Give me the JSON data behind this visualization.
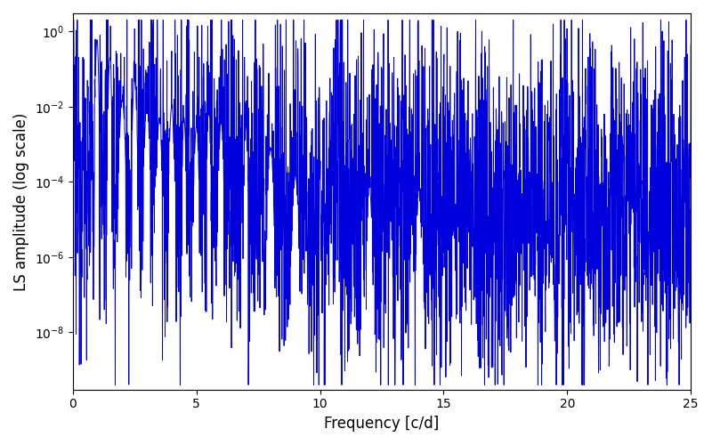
{
  "title": "",
  "xlabel": "Frequency [c/d]",
  "ylabel": "LS amplitude (log scale)",
  "xlim": [
    0,
    25
  ],
  "ylim": [
    3e-10,
    3.0
  ],
  "line_color": "#0000dd",
  "line_width": 0.7,
  "yscale": "log",
  "figsize": [
    8.0,
    5.0
  ],
  "dpi": 100,
  "seed": 12345,
  "n_points": 3000,
  "freq_max": 25.0,
  "background_color": "#ffffff"
}
